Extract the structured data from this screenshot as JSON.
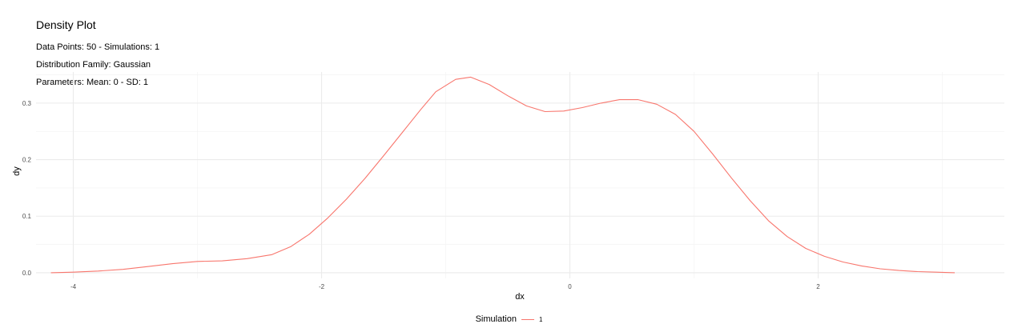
{
  "chart_data": {
    "type": "line",
    "title": "Density Plot",
    "subtitle_lines": [
      "Data Points: 50 - Simulations: 1",
      "Distribution Family: Gaussian",
      "Parameters: Mean: 0 - SD: 1"
    ],
    "xlabel": "dx",
    "ylabel": "dy",
    "xlim": [
      -4.3,
      3.5
    ],
    "ylim": [
      -0.01,
      0.355
    ],
    "x_ticks": [
      -4,
      -2,
      0,
      2
    ],
    "y_ticks": [
      0.0,
      0.1,
      0.2,
      0.3
    ],
    "x_tick_labels": [
      "-4",
      "-2",
      "0",
      "2"
    ],
    "y_tick_labels": [
      "0.0",
      "0.1",
      "0.2",
      "0.3"
    ],
    "grid": true,
    "legend": {
      "title": "Simulation",
      "position": "bottom",
      "entries": [
        "1"
      ]
    },
    "series": [
      {
        "name": "1",
        "color": "#F8766D",
        "x": [
          -4.18,
          -4.0,
          -3.8,
          -3.6,
          -3.4,
          -3.2,
          -3.0,
          -2.8,
          -2.6,
          -2.4,
          -2.25,
          -2.1,
          -1.95,
          -1.8,
          -1.65,
          -1.5,
          -1.35,
          -1.2,
          -1.08,
          -0.92,
          -0.8,
          -0.65,
          -0.5,
          -0.35,
          -0.2,
          -0.05,
          0.1,
          0.25,
          0.4,
          0.55,
          0.7,
          0.85,
          1.0,
          1.15,
          1.3,
          1.45,
          1.6,
          1.75,
          1.9,
          2.05,
          2.2,
          2.35,
          2.5,
          2.65,
          2.8,
          2.95,
          3.1
        ],
        "y": [
          0.0,
          0.001,
          0.003,
          0.006,
          0.011,
          0.016,
          0.02,
          0.021,
          0.025,
          0.032,
          0.046,
          0.068,
          0.097,
          0.13,
          0.167,
          0.207,
          0.248,
          0.289,
          0.32,
          0.342,
          0.346,
          0.333,
          0.313,
          0.295,
          0.285,
          0.286,
          0.292,
          0.3,
          0.306,
          0.306,
          0.298,
          0.28,
          0.25,
          0.21,
          0.168,
          0.128,
          0.092,
          0.064,
          0.043,
          0.029,
          0.019,
          0.012,
          0.007,
          0.004,
          0.002,
          0.001,
          0.0
        ]
      }
    ]
  }
}
